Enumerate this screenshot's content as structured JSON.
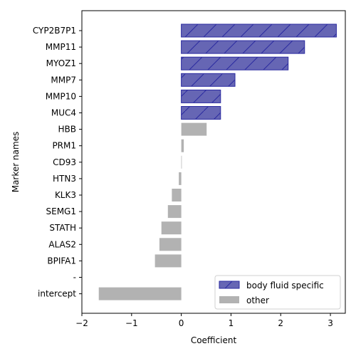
{
  "chart_data": {
    "type": "bar",
    "orientation": "horizontal",
    "xlabel": "Coefficient",
    "ylabel": "Marker names",
    "xlim": [
      -2,
      3.3
    ],
    "xticks": [
      -2,
      -1,
      0,
      1,
      2,
      3
    ],
    "categories": [
      "CYP2B7P1",
      "MMP11",
      "MYOZ1",
      "MMP7",
      "MMP10",
      "MUC4",
      "HBB",
      "PRM1",
      "CD93",
      "HTN3",
      "KLK3",
      "SEMG1",
      "STATH",
      "ALAS2",
      "BPIFA1",
      "",
      "intercept"
    ],
    "separator_label": "-",
    "values": [
      3.12,
      2.48,
      2.15,
      1.08,
      0.79,
      0.79,
      0.51,
      0.05,
      0.01,
      -0.05,
      -0.19,
      -0.27,
      -0.4,
      -0.44,
      -0.53,
      null,
      -1.66
    ],
    "groups": [
      "body fluid specific",
      "body fluid specific",
      "body fluid specific",
      "body fluid specific",
      "body fluid specific",
      "body fluid specific",
      "other",
      "other",
      "other",
      "other",
      "other",
      "other",
      "other",
      "other",
      "other",
      null,
      "other"
    ],
    "legend": {
      "placement": "lower-right",
      "entries": [
        {
          "label": "body fluid specific",
          "color": "#6666b4",
          "edge": "#2a2aa0",
          "hatch": true
        },
        {
          "label": "other",
          "color": "#b2b2b2",
          "edge": "#b2b2b2",
          "hatch": false
        }
      ]
    },
    "grid": false
  }
}
